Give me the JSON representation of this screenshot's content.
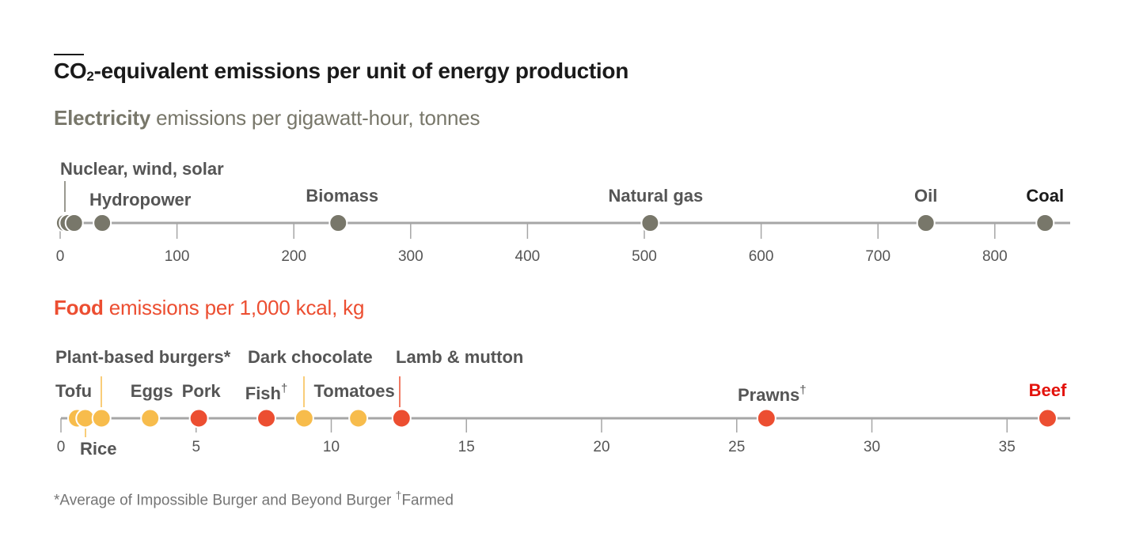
{
  "title": {
    "prefix": "CO",
    "subscript": "2",
    "rest": "-equivalent emissions per unit of energy production"
  },
  "colors": {
    "electricity": "#78776a",
    "food_accent": "#ec4e31",
    "plant": "#f7bc4c",
    "animal": "#ec4e31",
    "beef": "#e3120b",
    "axis": "#a6a6a6",
    "label": "#555555"
  },
  "chart_data": [
    {
      "type": "scatter",
      "name": "electricity",
      "title_bold": "Electricity",
      "title_rest": " emissions per gigawatt-hour, tonnes",
      "xlim": [
        0,
        860
      ],
      "ticks": [
        0,
        100,
        200,
        300,
        400,
        500,
        600,
        700,
        800
      ],
      "tick_labels": [
        "0",
        "100",
        "200",
        "300",
        "400",
        "500",
        "600",
        "700",
        "800"
      ],
      "points": [
        {
          "label": "",
          "value": 4,
          "group": "electricity"
        },
        {
          "label": "",
          "value": 7,
          "group": "electricity"
        },
        {
          "label": "Nuclear, wind, solar",
          "value": 12,
          "group": "electricity"
        },
        {
          "label": "Hydropower",
          "value": 36,
          "group": "electricity"
        },
        {
          "label": "Biomass",
          "value": 238,
          "group": "electricity"
        },
        {
          "label": "Natural gas",
          "value": 505,
          "group": "electricity"
        },
        {
          "label": "Oil",
          "value": 741,
          "group": "electricity"
        },
        {
          "label": "Coal",
          "value": 843,
          "group": "electricity",
          "emphasis": true
        }
      ]
    },
    {
      "type": "scatter",
      "name": "food",
      "title_bold": "Food",
      "title_rest": " emissions per 1,000 kcal, kg",
      "xlim": [
        0,
        37.5
      ],
      "ticks": [
        0,
        5,
        10,
        15,
        20,
        25,
        30,
        35
      ],
      "tick_labels": [
        "0",
        "5",
        "10",
        "15",
        "20",
        "25",
        "30",
        "35"
      ],
      "points": [
        {
          "label": "Tofu",
          "value": 0.6,
          "group": "plant"
        },
        {
          "label": "Rice",
          "value": 0.9,
          "group": "plant"
        },
        {
          "label": "Plant-based burgers*",
          "value": 1.5,
          "group": "plant"
        },
        {
          "label": "Eggs",
          "value": 3.3,
          "group": "plant"
        },
        {
          "label": "Pork",
          "value": 5.1,
          "group": "animal"
        },
        {
          "label": "Fish†",
          "value": 7.6,
          "group": "animal"
        },
        {
          "label": "Dark chocolate",
          "value": 9.0,
          "group": "plant"
        },
        {
          "label": "Tomatoes",
          "value": 11.0,
          "group": "plant"
        },
        {
          "label": "Lamb & mutton",
          "value": 12.6,
          "group": "animal"
        },
        {
          "label": "Prawns†",
          "value": 26.1,
          "group": "animal"
        },
        {
          "label": "Beef",
          "value": 36.5,
          "group": "beef",
          "emphasis": true
        }
      ]
    }
  ],
  "footnote": {
    "part1": "*Average of Impossible Burger and Beyond Burger ",
    "dagger": "†",
    "part2": "Farmed"
  }
}
